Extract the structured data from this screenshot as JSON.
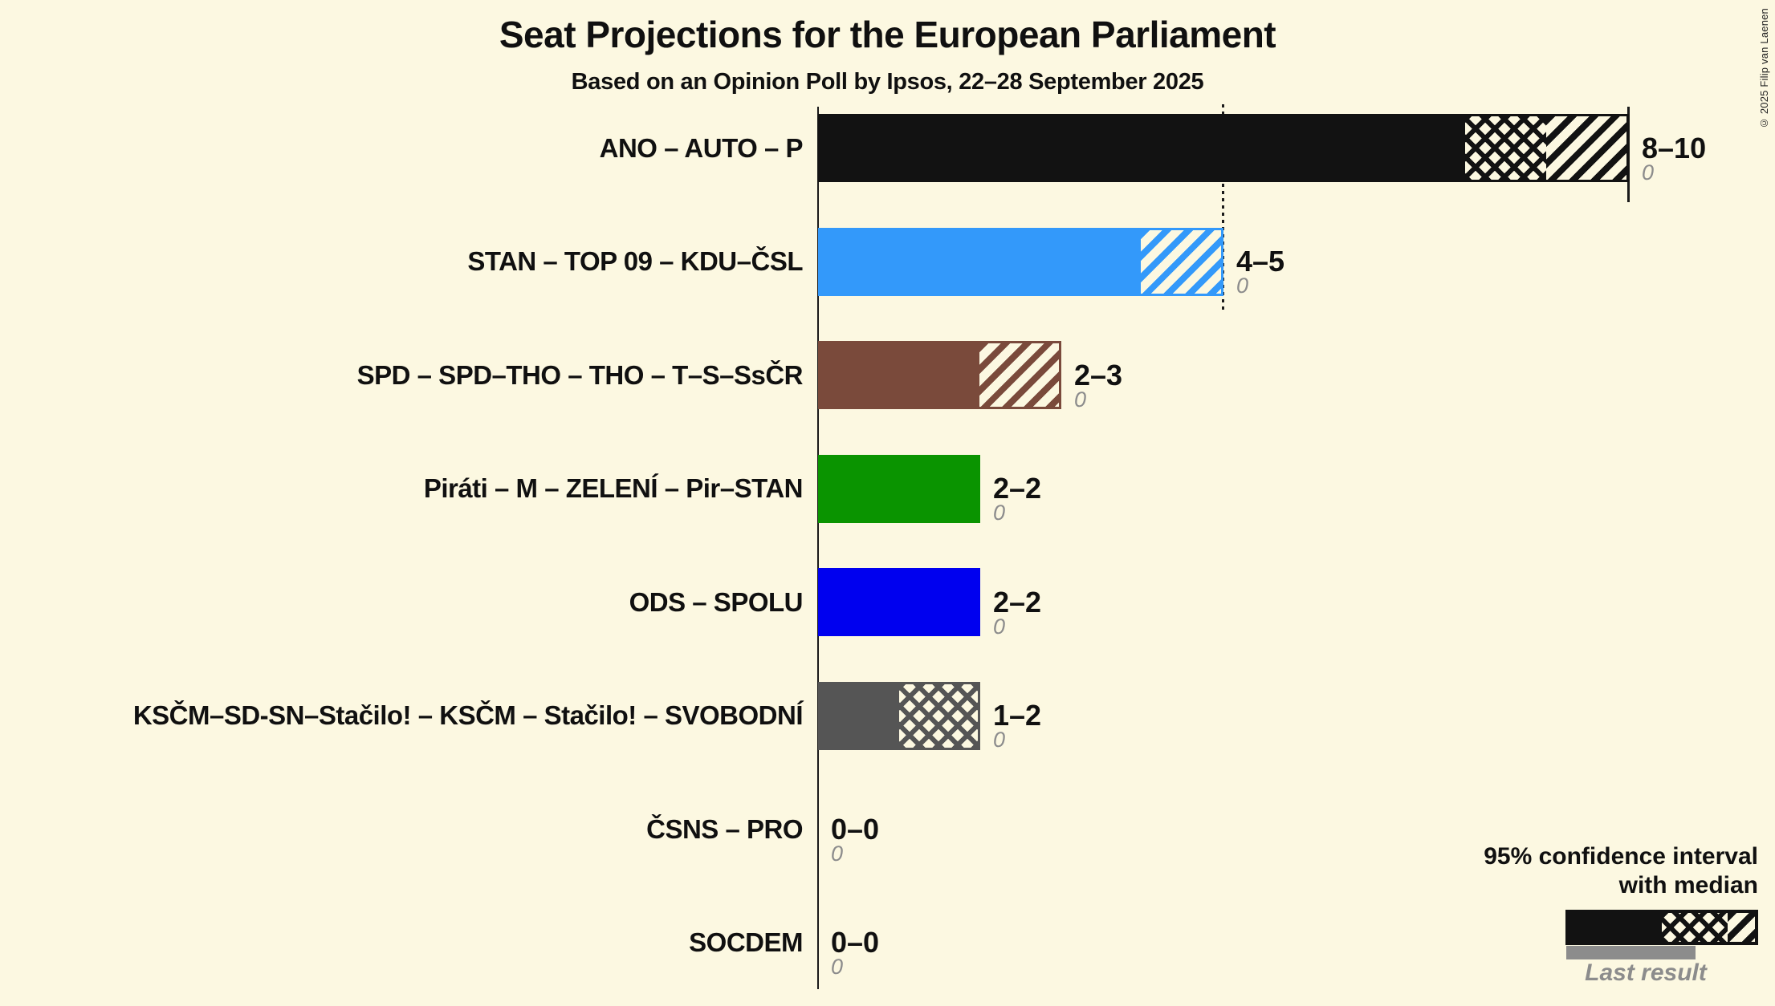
{
  "header": {
    "title": "Seat Projections for the European Parliament",
    "subtitle": "Based on an Opinion Poll by Ipsos, 22–28 September 2025"
  },
  "chart_data": {
    "type": "bar",
    "orientation": "horizontal",
    "unit": "seats",
    "x_axis": {
      "min": 0,
      "max": 10,
      "dotted_guide_line_at": 5,
      "solid_end_tick_at": 10,
      "gridlines": false
    },
    "rows": [
      {
        "label": "ANO – AUTO – P",
        "ci_low": 8,
        "median": 9,
        "ci_high": 10,
        "range_label": "8–10",
        "last_result": "0",
        "color": "#121212"
      },
      {
        "label": "STAN – TOP 09 – KDU–ČSL",
        "ci_low": 4,
        "median": 4,
        "ci_high": 5,
        "range_label": "4–5",
        "last_result": "0",
        "color": "#3399FA"
      },
      {
        "label": "SPD – SPD–THO – THO – T–S–SsČR",
        "ci_low": 2,
        "median": 2,
        "ci_high": 3,
        "range_label": "2–3",
        "last_result": "0",
        "color": "#7A4A3B"
      },
      {
        "label": "Piráti – M – ZELENÍ – Pir–STAN",
        "ci_low": 2,
        "median": 2,
        "ci_high": 2,
        "range_label": "2–2",
        "last_result": "0",
        "color": "#0A9400"
      },
      {
        "label": "ODS – SPOLU",
        "ci_low": 2,
        "median": 2,
        "ci_high": 2,
        "range_label": "2–2",
        "last_result": "0",
        "color": "#0000EF"
      },
      {
        "label": "KSČM–SD-SN–Stačilo! – KSČM – Stačilo! – SVOBODNÍ",
        "ci_low": 1,
        "median": 2,
        "ci_high": 2,
        "range_label": "1–2",
        "last_result": "0",
        "color": "#555555"
      },
      {
        "label": "ČSNS – PRO",
        "ci_low": 0,
        "median": 0,
        "ci_high": 0,
        "range_label": "0–0",
        "last_result": "0",
        "color": null
      },
      {
        "label": "SOCDEM",
        "ci_low": 0,
        "median": 0,
        "ci_high": 0,
        "range_label": "0–0",
        "last_result": "0",
        "color": null
      }
    ]
  },
  "legend": {
    "ci_line1": "95% confidence interval",
    "ci_line2": "with median",
    "last_result_label": "Last result",
    "last_result_color": "#8C8C8C",
    "ci_sample_color": "#121212"
  },
  "footer": {
    "copyright": "© 2025 Filip van Laenen"
  },
  "colors": {
    "background": "#FCF8E1",
    "text": "#101010",
    "muted": "#8C8C8C"
  }
}
